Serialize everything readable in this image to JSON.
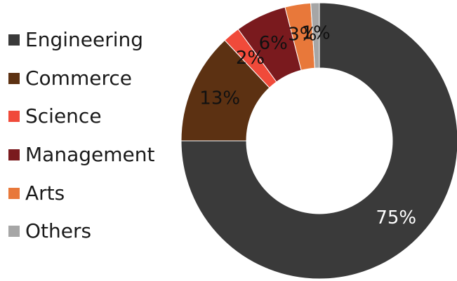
{
  "chart_data": {
    "type": "pie",
    "donut": true,
    "legend_position": "left",
    "categories": [
      "Engineering",
      "Commerce",
      "Science",
      "Management",
      "Arts",
      "Others"
    ],
    "values": [
      75,
      13,
      2,
      6,
      3,
      1
    ],
    "value_labels": [
      "75%",
      "13%",
      "2%",
      "6%",
      "3%",
      "1%"
    ],
    "colors": [
      "#3a3a3a",
      "#5c3112",
      "#f04a3a",
      "#7a1a1e",
      "#e8783a",
      "#a6a6a6"
    ]
  }
}
